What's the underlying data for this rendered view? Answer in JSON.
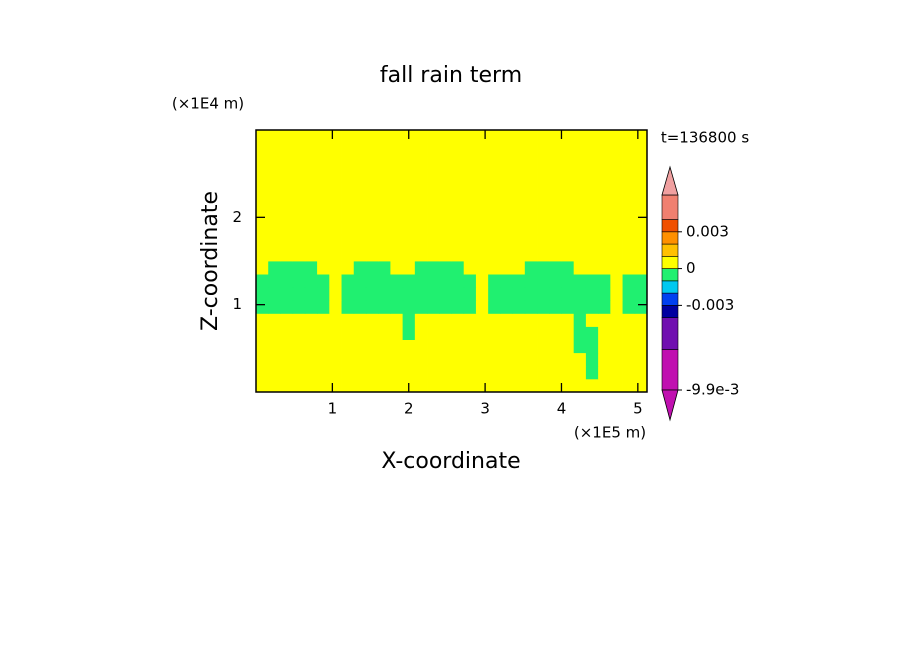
{
  "chart_data": {
    "type": "contour",
    "title": "fall rain term",
    "xlabel": "X-coordinate",
    "ylabel": "Z-coordinate",
    "xunit": "(×1E5 m)",
    "yunit": "(×1E4 m)",
    "annotation": "t=136800 s",
    "xlim": [
      0,
      5.12
    ],
    "ylim": [
      0,
      3
    ],
    "xticks": [
      1,
      2,
      3,
      4,
      5
    ],
    "yticks": [
      1,
      2
    ],
    "x": [
      0.08,
      0.24,
      0.4,
      0.56,
      0.72,
      0.88,
      1.04,
      1.2,
      1.36,
      1.52,
      1.68,
      1.84,
      2.0,
      2.16,
      2.32,
      2.48,
      2.64,
      2.8,
      2.96,
      3.12,
      3.28,
      3.44,
      3.6,
      3.76,
      3.92,
      4.08,
      4.24,
      4.4,
      4.56,
      4.72,
      4.88,
      5.04
    ],
    "y": [
      0.075,
      0.225,
      0.375,
      0.525,
      0.675,
      0.825,
      0.975,
      1.125,
      1.275,
      1.425,
      1.575,
      1.725,
      1.875,
      2.025,
      2.175,
      2.325,
      2.475,
      2.625,
      2.775,
      2.925
    ],
    "z": [
      [
        0,
        0,
        0,
        0,
        0,
        0,
        0,
        0,
        0,
        0,
        0,
        0,
        0,
        0,
        0,
        0,
        0,
        0,
        0,
        0,
        0,
        0,
        0,
        0,
        0,
        0,
        0,
        0,
        0,
        0,
        0,
        0
      ],
      [
        0,
        0,
        0,
        0,
        0,
        0,
        0,
        0,
        0,
        0,
        0,
        0,
        0,
        0,
        0,
        0,
        0,
        0,
        0,
        0,
        0,
        0,
        0,
        0,
        0,
        0,
        0,
        -0.0005,
        0,
        0,
        0,
        0
      ],
      [
        0,
        0,
        0,
        0,
        0,
        0,
        0,
        0,
        0,
        0,
        0,
        0,
        0,
        0,
        0,
        0,
        0,
        0,
        0,
        0,
        0,
        0,
        0,
        0,
        0,
        0,
        0,
        -0.0005,
        0,
        0,
        0,
        0
      ],
      [
        0,
        0,
        0,
        0,
        0,
        0,
        0,
        0,
        0,
        0,
        0,
        0,
        0,
        0,
        0,
        0,
        0,
        0,
        0,
        0,
        0,
        0,
        0,
        0,
        0,
        0,
        -0.0005,
        -0.0005,
        0,
        0,
        0,
        0
      ],
      [
        0,
        0,
        0,
        0,
        0,
        0,
        0,
        0,
        0,
        0,
        0,
        0,
        -0.0005,
        0,
        0,
        0,
        0,
        0,
        0,
        0,
        0,
        0,
        0,
        0,
        0,
        0,
        -0.0005,
        -0.0005,
        0,
        0,
        0,
        0
      ],
      [
        0,
        0,
        0,
        0,
        0,
        0,
        0,
        0,
        0,
        0,
        0,
        0,
        -0.0005,
        0,
        0,
        0,
        0,
        0,
        0,
        0,
        0,
        0,
        0,
        0,
        0,
        0,
        -0.0005,
        0,
        0,
        0,
        0,
        0
      ],
      [
        -0.0005,
        -0.0005,
        -0.0005,
        -0.0005,
        -0.0005,
        -0.0005,
        0,
        -0.0005,
        -0.0005,
        -0.0005,
        -0.0005,
        -0.0005,
        -0.0005,
        -0.0005,
        -0.0005,
        -0.0005,
        -0.0005,
        -0.0005,
        0,
        -0.0005,
        -0.0005,
        -0.0005,
        -0.0005,
        -0.0005,
        -0.0005,
        -0.0005,
        -0.0005,
        -0.0005,
        -0.0005,
        0,
        -0.0005,
        -0.0005
      ],
      [
        -0.0005,
        -0.0005,
        -0.0005,
        -0.0005,
        -0.0005,
        -0.0005,
        0,
        -0.0005,
        -0.0005,
        -0.0005,
        -0.0005,
        -0.0005,
        -0.0005,
        -0.0005,
        -0.0005,
        -0.0005,
        -0.0005,
        -0.0005,
        0,
        -0.0005,
        -0.0005,
        -0.0005,
        -0.0005,
        -0.0005,
        -0.0005,
        -0.0005,
        -0.0005,
        -0.0005,
        -0.0005,
        0,
        -0.0005,
        -0.0005
      ],
      [
        -0.0005,
        -0.0005,
        -0.0005,
        -0.0005,
        -0.0005,
        -0.0005,
        0,
        -0.0005,
        -0.0005,
        -0.0005,
        -0.0005,
        -0.0005,
        -0.0005,
        -0.0005,
        -0.0005,
        -0.0005,
        -0.0005,
        -0.0005,
        0,
        -0.0005,
        -0.0005,
        -0.0005,
        -0.0005,
        -0.0005,
        -0.0005,
        -0.0005,
        -0.0005,
        -0.0005,
        -0.0005,
        0,
        -0.0005,
        -0.0005
      ],
      [
        0,
        -0.0005,
        -0.0005,
        -0.0005,
        -0.0005,
        0,
        0,
        0,
        -0.0005,
        -0.0005,
        -0.0005,
        0,
        0,
        -0.0005,
        -0.0005,
        -0.0005,
        -0.0005,
        0,
        0,
        0,
        0,
        0,
        -0.0005,
        -0.0005,
        -0.0005,
        -0.0005,
        0,
        0,
        0,
        0,
        0,
        0
      ],
      [
        0,
        0,
        0,
        0,
        0,
        0,
        0,
        0,
        0,
        0,
        0,
        0,
        0,
        0,
        0,
        0,
        0,
        0,
        0,
        0,
        0,
        0,
        0,
        0,
        0,
        0,
        0,
        0,
        0,
        0,
        0,
        0
      ],
      [
        0,
        0,
        0,
        0,
        0,
        0,
        0,
        0,
        0,
        0,
        0,
        0,
        0,
        0,
        0,
        0,
        0,
        0,
        0,
        0,
        0,
        0,
        0,
        0,
        0,
        0,
        0,
        0,
        0,
        0,
        0,
        0
      ],
      [
        0,
        0,
        0,
        0,
        0,
        0,
        0,
        0,
        0,
        0,
        0,
        0,
        0,
        0,
        0,
        0,
        0,
        0,
        0,
        0,
        0,
        0,
        0,
        0,
        0,
        0,
        0,
        0,
        0,
        0,
        0,
        0
      ],
      [
        0,
        0,
        0,
        0,
        0,
        0,
        0,
        0,
        0,
        0,
        0,
        0,
        0,
        0,
        0,
        0,
        0,
        0,
        0,
        0,
        0,
        0,
        0,
        0,
        0,
        0,
        0,
        0,
        0,
        0,
        0,
        0
      ],
      [
        0,
        0,
        0,
        0,
        0,
        0,
        0,
        0,
        0,
        0,
        0,
        0,
        0,
        0,
        0,
        0,
        0,
        0,
        0,
        0,
        0,
        0,
        0,
        0,
        0,
        0,
        0,
        0,
        0,
        0,
        0,
        0
      ],
      [
        0,
        0,
        0,
        0,
        0,
        0,
        0,
        0,
        0,
        0,
        0,
        0,
        0,
        0,
        0,
        0,
        0,
        0,
        0,
        0,
        0,
        0,
        0,
        0,
        0,
        0,
        0,
        0,
        0,
        0,
        0,
        0
      ],
      [
        0,
        0,
        0,
        0,
        0,
        0,
        0,
        0,
        0,
        0,
        0,
        0,
        0,
        0,
        0,
        0,
        0,
        0,
        0,
        0,
        0,
        0,
        0,
        0,
        0,
        0,
        0,
        0,
        0,
        0,
        0,
        0
      ],
      [
        0,
        0,
        0,
        0,
        0,
        0,
        0,
        0,
        0,
        0,
        0,
        0,
        0,
        0,
        0,
        0,
        0,
        0,
        0,
        0,
        0,
        0,
        0,
        0,
        0,
        0,
        0,
        0,
        0,
        0,
        0,
        0
      ],
      [
        0,
        0,
        0,
        0,
        0,
        0,
        0,
        0,
        0,
        0,
        0,
        0,
        0,
        0,
        0,
        0,
        0,
        0,
        0,
        0,
        0,
        0,
        0,
        0,
        0,
        0,
        0,
        0,
        0,
        0,
        0,
        0
      ],
      [
        0,
        0,
        0,
        0,
        0,
        0,
        0,
        0,
        0,
        0,
        0,
        0,
        0,
        0,
        0,
        0,
        0,
        0,
        0,
        0,
        0,
        0,
        0,
        0,
        0,
        0,
        0,
        0,
        0,
        0,
        0,
        0
      ]
    ],
    "colorbar": {
      "bounds": [
        -0.0099,
        -0.0066,
        -0.004,
        -0.003,
        -0.002,
        -0.001,
        0,
        0.001,
        0.002,
        0.003,
        0.004,
        0.006
      ],
      "colors": [
        "#c010b0",
        "#7010b0",
        "#0000a0",
        "#0040f0",
        "#00c8f0",
        "#20f070",
        "#ffff00",
        "#ffc000",
        "#ff9000",
        "#f05000",
        "#f08070"
      ],
      "under_color": "#c010b0",
      "over_color": "#f0a0a0",
      "ticks": [
        0.003,
        0,
        -0.003,
        {
          "value": -0.0099,
          "label": "-9.9e-3"
        }
      ]
    }
  }
}
